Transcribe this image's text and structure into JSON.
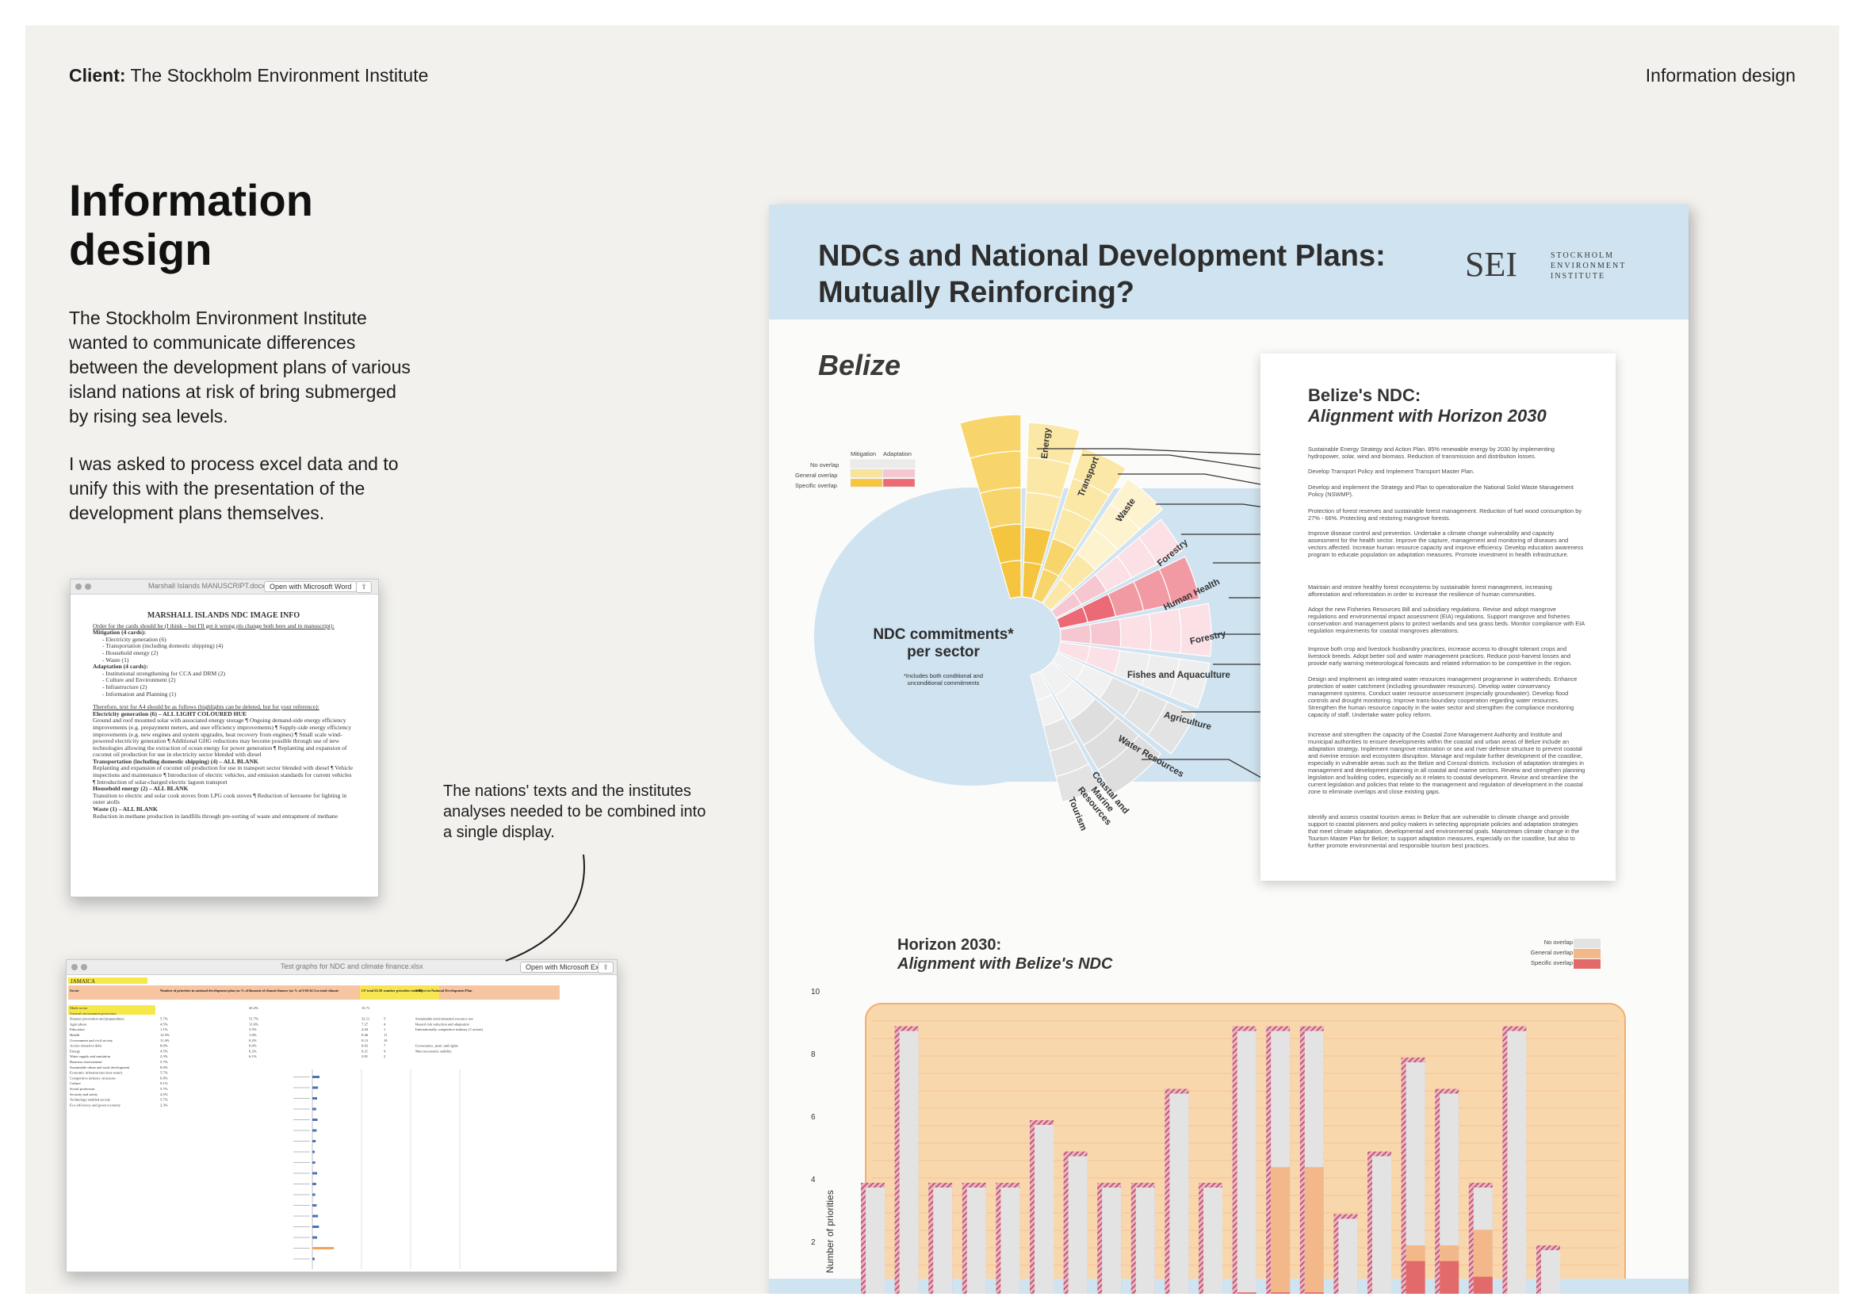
{
  "header": {
    "client_label": "Client:",
    "client_name": "The Stockholm Environment Institute",
    "category": "Information design"
  },
  "intro": {
    "title": "Information design",
    "para1": "The Stockholm Environment Institute wanted to communicate differences between the development plans of various island nations at risk of bring submerged by rising sea levels.",
    "para2": "I was asked to process excel data and to unify this with the presentation of the development plans themselves."
  },
  "caption": "The nations' texts and the institutes analyses needed to be combined into a single display.",
  "word_window": {
    "title": "Marshall Islands MANUSCRIPT.docx",
    "open_button": "Open with Microsoft Word",
    "doc_heading": "MARSHALL ISLANDS NDC IMAGE INFO",
    "lines": [
      "Order for the cards should be (I think – but I'll get it wrong pls change both here and in manuscript):",
      "Mitigation (4 cards):",
      "- Electricity generation (6)",
      "- Transportation (including domestic shipping) (4)",
      "- Household energy (2)",
      "- Waste (1)",
      "Adaptation (4 cards):",
      "- Institutional strengthening for CCA and DRM (2)",
      "- Culture and Environment (2)",
      "- Infrastructure (2)",
      "- Information and Planning (1)",
      "Therefore, text for A4 should be as follows (highlights can be deleted, but for your reference):",
      "Electricity generation (6) – ALL LIGHT COLOURED HUE",
      "Ground and roof mounted solar with associated energy storage ¶ Ongoing demand-side energy efficiency improvements (e.g. prepayment meters, and user efficiency improvements) ¶ Supply-side energy efficiency improvements (e.g. new engines and system upgrades, heat recovery from engines) ¶ Small scale wind-powered electricity generation ¶ Additional GHG reductions may become possible through use of new technologies allowing the extraction of ocean energy for power generation ¶ Replanting and expansion of coconut oil production for use in electricity sector blended with diesel",
      "Transportation (including domestic shipping) (4) – ALL BLANK",
      "Replanting and expansion of coconut oil production for use in transport sector blended with diesel ¶ Vehicle inspections and maintenance ¶ Introduction of electric vehicles, and emission standards for current vehicles ¶ Introduction of solar-charged electric lagoon transport",
      "Household energy (2) – ALL BLANK",
      "Transition to electric and solar cook stoves from LPG cook stoves ¶ Reduction of kerosene for lighting in outer atolls",
      "Waste (1) – ALL BLANK",
      "Reduction in methane production in landfills through pre-sorting of waste and entrapment of methane"
    ]
  },
  "excel_window": {
    "title": "Test graphs for NDC and climate finance.xlsx",
    "open_button": "Open with Microsoft Excel",
    "sheet_title": "JAMAICA",
    "headers": [
      "Sector",
      "Number of priorities in national development plan (as % of total number)",
      "Amount of climate finance (as % of US$ 62.3 m total climate finance)",
      "CF total 62.30",
      "number priorities total 88",
      "Subject in National Development Plan"
    ],
    "rows": [
      [
        "Multi-sector",
        "",
        "20.2%",
        "15.71",
        "",
        ""
      ],
      [
        "General environment protection",
        "",
        "",
        "",
        "",
        ""
      ],
      [
        "Disaster prevention and preparedness",
        "5.7%",
        "51.7%",
        "32.11",
        "5",
        "Sustainable environmental resource use"
      ],
      [
        "Agriculture",
        "4.5%",
        "11.6%",
        "7.27",
        "4",
        "Hazard risk reduction and adaptation"
      ],
      [
        "Education",
        "1.1%",
        "3.5%",
        "2.04",
        "1",
        "Internationally competitive industry (1 action)"
      ],
      [
        "Health",
        "12.5%",
        "1.0%",
        "0.46",
        "11",
        ""
      ],
      [
        "Government and civil society",
        "11.4%",
        "0.2%",
        "0.13",
        "10",
        ""
      ],
      [
        "Action related to debt",
        "8.0%",
        "0.0%",
        "0.02",
        "7",
        "Governance, justic and rights"
      ],
      [
        "Energy",
        "4.5%",
        "0.2%",
        "0.21",
        "4",
        "Macroeconomic stability"
      ],
      [
        "Water supply and sanitation",
        "2.3%",
        "6.1%",
        "3.81",
        "2",
        ""
      ],
      [
        "Business environment",
        "5.7%",
        "",
        "",
        "",
        ""
      ],
      [
        "Sustainable urban and rural development",
        "8.0%",
        "",
        "",
        "",
        ""
      ],
      [
        "Economic infrastructure (not water)",
        "5.7%",
        "",
        "",
        "",
        ""
      ],
      [
        "Competitive industry structures",
        "6.8%",
        "",
        "",
        "",
        ""
      ],
      [
        "Culture",
        "9.1%",
        "",
        "",
        "",
        ""
      ],
      [
        "Social protection",
        "5.7%",
        "",
        "",
        "",
        ""
      ],
      [
        "Security and safety",
        "4.5%",
        "",
        "",
        "",
        ""
      ],
      [
        "Technology enabled society",
        "5.7%",
        "",
        "",
        "",
        ""
      ],
      [
        "Eco-efficiency and green economy",
        "2.3%",
        "",
        "",
        "",
        ""
      ]
    ],
    "chart_values": [
      1.5,
      1.2,
      1.0,
      0.8,
      1.1,
      0.9,
      0.7,
      0.5,
      0.6,
      1.0,
      0.8,
      0.6,
      0.9,
      1.2,
      1.4,
      1.0,
      4.5,
      0.5
    ]
  },
  "poster": {
    "title_line1": "NDCs and National Development Plans:",
    "title_line2": "Mutually Reinforcing?",
    "logo_mark": "SEI",
    "logo_line1": "STOCKHOLM",
    "logo_line2": "ENVIRONMENT",
    "logo_line3": "INSTITUTE",
    "country": "Belize",
    "legend": {
      "col1": "Mitigation",
      "col2": "Adaptation",
      "row1": "No overlap",
      "row2": "General overlap",
      "row3": "Specific overlap"
    },
    "center_label_line1": "NDC commitments*",
    "center_label_line2": "per sector",
    "center_note_line1": "*Includes both conditional and",
    "center_note_line2": "unconditional commitments",
    "sectors": [
      "Energy",
      "Transport",
      "Waste",
      "Forestry",
      "Human Health",
      "Forestry",
      "Fishes and Aquaculture",
      "Agriculture",
      "Water Resources",
      "Coastal and Marine Resources",
      "Tourism"
    ],
    "card_title1": "Belize's NDC:",
    "card_title2": "Alignment with Horizon 2030",
    "card_paragraphs": [
      "Sustainable Energy Strategy and Action Plan. 85% renewable energy by 2030 by implementing hydropower, solar, wind and biomass. Reduction of transmission and distribution losses.",
      "Develop Transport Policy and Implement Transport Master Plan.",
      "Develop and implement the Strategy and Plan to operationalize the National Solid Waste Management Policy (NSWMP).",
      "Protection of forest reserves and sustainable forest management. Reduction of fuel wood consumption by 27% - 66%. Protecting and restoring mangrove forests.",
      "Improve disease control and prevention. Undertake a climate change vulnerability and capacity assessment for the health sector. Improve the capture, management and monitoring of diseases and vectors affected. Increase human resource capacity and improve efficiency. Develop education awareness program to educate population on adaptation measures. Promote investment in health infrastructure.",
      "Maintain and restore healthy forest ecosystems by sustainable forest management, increasing afforestation and reforestation in order to increase the resilience of human communities.",
      "Adopt the new Fisheries Resources Bill and subsidiary regulations. Revise and adopt mangrove regulations and environmental impact assessment (EIA) regulations. Support mangrove and fisheries conservation and management plans to protect wetlands and sea grass beds. Monitor compliance with EIA regulation requirements for coastal mangroves alterations.",
      "Improve both crop and livestock husbandry practices, increase access to drought tolerant crops and livestock breeds. Adopt better soil and water management practices. Reduce post-harvest losses and provide early warning meteorological forecasts and related information to be competitive in the region.",
      "Design and implement an integrated water resources management programme in watersheds. Enhance protection of water catchment (including groundwater resources). Develop water conservancy management systems. Conduct water resource assessment (especially groundwater). Develop flood controls and drought monitoring. Improve trans-boundary cooperation regarding water resources. Strengthen the human resource capacity in the water sector and strengthen the compliance monitoring capacity of staff. Undertake water policy reform.",
      "Increase and strengthen the capacity of the Coastal Zone Management Authority and Institute and municipal authorities to ensure developments within the coastal and urban areas of Belize include an adaptation strategy. Implement mangrove restoration or sea and river defence structure to prevent coastal and riverine erosion and ecosystem disruption. Manage and regulate further development of the coastline, especially in vulnerable areas such as the Belize and Corozal districts. Inclusion of adaptation strategies in management and development planning in all coastal and marine sectors. Review and strengthen planning legislation and building codes, especially as it relates to coastal development. Revise and streamline the current legislation and policies that relate to the management and regulation of development in the coastal zone to eliminate overlaps and close existing gaps.",
      "Identify and assess coastal tourism areas in Belize that are vulnerable to climate change and provide support to coastal planners and policy makers in selecting appropriate policies and adaptation strategies that meet climate adaptation, developmental and environmental goals. Mainstream climate change in the Tourism Master Plan for Belize; to support adaptation measures, especially on the coastline, but also to further promote environmental and responsible tourism best practices."
    ],
    "horizon_title1": "Horizon 2030:",
    "horizon_title2": "Alignment with Belize's NDC",
    "horizon_legend": [
      "No overlap",
      "General overlap",
      "Specific overlap"
    ],
    "ylabel": "Number of priorities",
    "yticks": [
      "10",
      "8",
      "6",
      "4",
      "2"
    ]
  },
  "chart_data": {
    "type": "bar",
    "title": "Horizon 2030: Alignment with Belize's NDC",
    "ylabel": "Number of priorities",
    "ylim": [
      0,
      10
    ],
    "yticks": [
      2,
      4,
      6,
      8,
      10
    ],
    "series": [
      {
        "name": "No overlap",
        "values": [
          4,
          9,
          4,
          4,
          4,
          6,
          5,
          4,
          4,
          7,
          4,
          9,
          9,
          9,
          3,
          5,
          8,
          7,
          4,
          9,
          2
        ]
      },
      {
        "name": "General overlap",
        "values": [
          0,
          0,
          0,
          0,
          0,
          0,
          0,
          0,
          0,
          0,
          0,
          0,
          4.5,
          4.5,
          0,
          0,
          2,
          2,
          2.5,
          0,
          0
        ]
      },
      {
        "name": "Specific overlap",
        "values": [
          0,
          0,
          0,
          0,
          0,
          0,
          0,
          0,
          0,
          0,
          0,
          0.5,
          0.5,
          0.5,
          0,
          0,
          1.5,
          1.5,
          1,
          0,
          0
        ]
      }
    ],
    "colors": {
      "no_overlap": "#e3e3e4",
      "general_overlap": "#f2b88a",
      "specific_overlap": "#e36a6a",
      "hatch": "#b1365a"
    }
  }
}
